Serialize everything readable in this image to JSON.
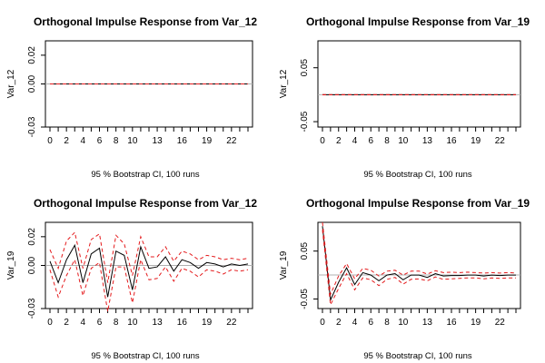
{
  "figure": {
    "colors": {
      "response": "#000000",
      "ci": "#e41a1c",
      "zero_line": "#b0b0b0"
    }
  },
  "chart_data": [
    {
      "type": "line",
      "title": "Orthogonal Impulse Response from Var_12",
      "ylabel": "Var_12",
      "xlabel": "95 % Bootstrap CI,  100 runs",
      "x": [
        0,
        1,
        2,
        3,
        4,
        5,
        6,
        7,
        8,
        9,
        10,
        11,
        12,
        13,
        14,
        15,
        16,
        17,
        18,
        19,
        20,
        21,
        22,
        23,
        24
      ],
      "xtick_labels": [
        "0",
        "2",
        "4",
        "6",
        "8",
        "10",
        "13",
        "16",
        "19",
        "22"
      ],
      "xticks": [
        0,
        2,
        4,
        6,
        8,
        10,
        13,
        16,
        19,
        22
      ],
      "ylim": [
        -0.03,
        0.03
      ],
      "yticks": [
        -0.03,
        0.0,
        0.02
      ],
      "ytick_labels": [
        "-0.03",
        "0.00",
        "0.02"
      ],
      "series": [
        {
          "role": "response",
          "values": [
            0,
            0,
            0,
            0,
            0,
            0,
            0,
            0,
            0,
            0,
            0,
            0,
            0,
            0,
            0,
            0,
            0,
            0,
            0,
            0,
            0,
            0,
            0,
            0,
            0
          ]
        },
        {
          "role": "upper",
          "values": [
            0,
            0,
            0,
            0,
            0,
            0,
            0,
            0,
            0,
            0,
            0,
            0,
            0,
            0,
            0,
            0,
            0,
            0,
            0,
            0,
            0,
            0,
            0,
            0,
            0
          ]
        },
        {
          "role": "lower",
          "values": [
            0,
            0,
            0,
            0,
            0,
            0,
            0,
            0,
            0,
            0,
            0,
            0,
            0,
            0,
            0,
            0,
            0,
            0,
            0,
            0,
            0,
            0,
            0,
            0,
            0
          ]
        }
      ]
    },
    {
      "type": "line",
      "title": "Orthogonal Impulse Response from Var_19",
      "ylabel": "Var_12",
      "xlabel": "95 % Bootstrap CI,  100 runs",
      "x": [
        0,
        1,
        2,
        3,
        4,
        5,
        6,
        7,
        8,
        9,
        10,
        11,
        12,
        13,
        14,
        15,
        16,
        17,
        18,
        19,
        20,
        21,
        22,
        23,
        24
      ],
      "xtick_labels": [
        "0",
        "2",
        "4",
        "6",
        "8",
        "10",
        "13",
        "16",
        "19",
        "22"
      ],
      "xticks": [
        0,
        2,
        4,
        6,
        8,
        10,
        13,
        16,
        19,
        22
      ],
      "ylim": [
        -0.06,
        0.1
      ],
      "yticks": [
        -0.05,
        0.05
      ],
      "ytick_labels": [
        "-0.05",
        "0.05"
      ],
      "series": [
        {
          "role": "response",
          "values": [
            0,
            0,
            0,
            0,
            0,
            0,
            0,
            0,
            0,
            0,
            0,
            0,
            0,
            0,
            0,
            0,
            0,
            0,
            0,
            0,
            0,
            0,
            0,
            0,
            0
          ]
        },
        {
          "role": "upper",
          "values": [
            0,
            0,
            0,
            0,
            0,
            0,
            0,
            0,
            0,
            0,
            0,
            0,
            0,
            0,
            0,
            0,
            0,
            0,
            0,
            0,
            0,
            0,
            0,
            0,
            0
          ]
        },
        {
          "role": "lower",
          "values": [
            0,
            0,
            0,
            0,
            0,
            0,
            0,
            0,
            0,
            0,
            0,
            0,
            0,
            0,
            0,
            0,
            0,
            0,
            0,
            0,
            0,
            0,
            0,
            0,
            0
          ]
        }
      ]
    },
    {
      "type": "line",
      "title": "Orthogonal Impulse Response from Var_12",
      "ylabel": "Var_19",
      "xlabel": "95 % Bootstrap CI,  100 runs",
      "x": [
        0,
        1,
        2,
        3,
        4,
        5,
        6,
        7,
        8,
        9,
        10,
        11,
        12,
        13,
        14,
        15,
        16,
        17,
        18,
        19,
        20,
        21,
        22,
        23,
        24
      ],
      "xtick_labels": [
        "0",
        "2",
        "4",
        "6",
        "8",
        "10",
        "13",
        "16",
        "19",
        "22"
      ],
      "xticks": [
        0,
        2,
        4,
        6,
        8,
        10,
        13,
        16,
        19,
        22
      ],
      "ylim": [
        -0.03,
        0.03
      ],
      "yticks": [
        -0.03,
        0.0,
        0.02
      ],
      "ytick_labels": [
        "-0.03",
        "0.00",
        "0.02"
      ],
      "series": [
        {
          "role": "response",
          "values": [
            0.003,
            -0.012,
            0.004,
            0.014,
            -0.012,
            0.008,
            0.012,
            -0.022,
            0.01,
            0.007,
            -0.017,
            0.013,
            -0.002,
            -0.001,
            0.006,
            -0.004,
            0.004,
            0.002,
            -0.002,
            0.002,
            0.001,
            -0.001,
            0.001,
            0.0,
            0.001
          ]
        },
        {
          "role": "upper",
          "values": [
            0.011,
            -0.002,
            0.017,
            0.023,
            -0.002,
            0.018,
            0.022,
            -0.012,
            0.021,
            0.015,
            -0.007,
            0.02,
            0.006,
            0.006,
            0.013,
            0.003,
            0.01,
            0.008,
            0.004,
            0.007,
            0.006,
            0.004,
            0.005,
            0.004,
            0.005
          ]
        },
        {
          "role": "lower",
          "values": [
            -0.003,
            -0.022,
            -0.007,
            0.004,
            -0.021,
            -0.002,
            0.002,
            -0.032,
            -0.001,
            -0.001,
            -0.026,
            0.004,
            -0.01,
            -0.009,
            -0.001,
            -0.011,
            -0.002,
            -0.004,
            -0.008,
            -0.003,
            -0.004,
            -0.006,
            -0.003,
            -0.004,
            -0.003
          ]
        }
      ]
    },
    {
      "type": "line",
      "title": "Orthogonal Impulse Response from Var_19",
      "ylabel": "Var_19",
      "xlabel": "95 % Bootstrap CI,  100 runs",
      "x": [
        0,
        1,
        2,
        3,
        4,
        5,
        6,
        7,
        8,
        9,
        10,
        11,
        12,
        13,
        14,
        15,
        16,
        17,
        18,
        19,
        20,
        21,
        22,
        23,
        24
      ],
      "xtick_labels": [
        "0",
        "2",
        "4",
        "6",
        "8",
        "10",
        "13",
        "16",
        "19",
        "22"
      ],
      "xticks": [
        0,
        2,
        4,
        6,
        8,
        10,
        13,
        16,
        19,
        22
      ],
      "ylim": [
        -0.07,
        0.11
      ],
      "yticks": [
        -0.05,
        0.05
      ],
      "ytick_labels": [
        "-0.05",
        "0.05"
      ],
      "series": [
        {
          "role": "response",
          "values": [
            0.102,
            -0.052,
            -0.015,
            0.015,
            -0.02,
            0.005,
            0.0,
            -0.012,
            0.0,
            0.003,
            -0.01,
            0.0,
            0.0,
            -0.005,
            0.003,
            -0.002,
            -0.001,
            -0.001,
            0.0,
            0.0,
            -0.002,
            0.0,
            -0.001,
            0.0,
            0.0
          ]
        },
        {
          "role": "upper",
          "values": [
            0.11,
            -0.04,
            -0.002,
            0.024,
            -0.008,
            0.014,
            0.01,
            -0.002,
            0.008,
            0.01,
            0.0,
            0.008,
            0.008,
            0.002,
            0.009,
            0.005,
            0.006,
            0.005,
            0.006,
            0.005,
            0.004,
            0.005,
            0.004,
            0.005,
            0.004
          ]
        },
        {
          "role": "lower",
          "values": [
            0.094,
            -0.062,
            -0.028,
            0.003,
            -0.031,
            -0.006,
            -0.01,
            -0.022,
            -0.009,
            -0.005,
            -0.019,
            -0.009,
            -0.008,
            -0.012,
            -0.004,
            -0.009,
            -0.008,
            -0.007,
            -0.006,
            -0.006,
            -0.008,
            -0.006,
            -0.007,
            -0.006,
            -0.006
          ]
        }
      ]
    }
  ]
}
